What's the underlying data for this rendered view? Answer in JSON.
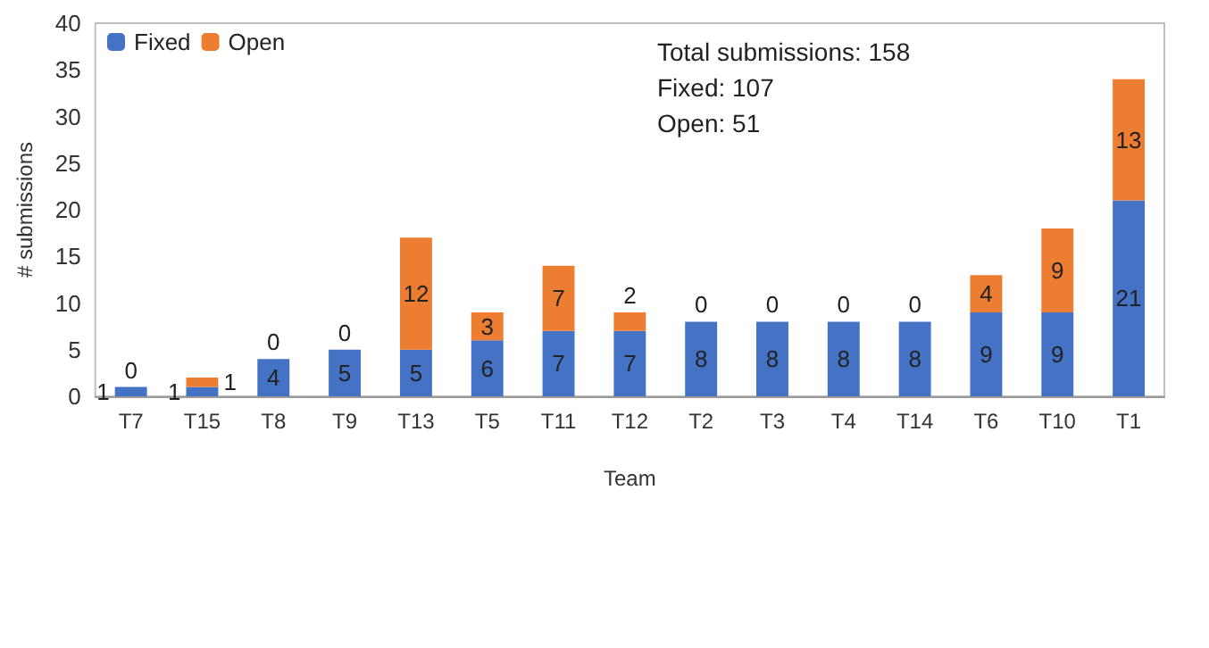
{
  "chart_data": {
    "type": "bar",
    "stacked": true,
    "xlabel": "Team",
    "ylabel": "# submissions",
    "categories": [
      "T7",
      "T15",
      "T8",
      "T9",
      "T13",
      "T5",
      "T11",
      "T12",
      "T2",
      "T3",
      "T4",
      "T14",
      "T6",
      "T10",
      "T1"
    ],
    "series": [
      {
        "name": "Fixed",
        "color": "#4472c4",
        "values": [
          1,
          1,
          4,
          5,
          5,
          6,
          7,
          7,
          8,
          8,
          8,
          8,
          9,
          9,
          21
        ]
      },
      {
        "name": "Open",
        "color": "#ed7d31",
        "values": [
          0,
          1,
          0,
          0,
          12,
          3,
          7,
          2,
          0,
          0,
          0,
          0,
          4,
          9,
          13
        ]
      }
    ],
    "ylim": [
      0,
      40
    ],
    "yticks": [
      0,
      5,
      10,
      15,
      20,
      25,
      30,
      35,
      40
    ],
    "grid": false,
    "legend": "top left",
    "data_labels": true,
    "annotations": [
      "Total submissions: 158",
      "Fixed: 107",
      "Open: 51"
    ]
  }
}
